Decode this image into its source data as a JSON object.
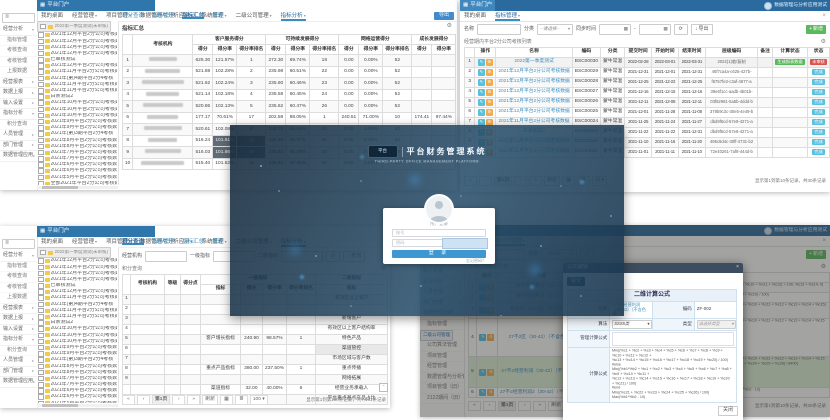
{
  "icons": {
    "gear": "⚙",
    "caret_down": "▾",
    "caret_right": "▸",
    "close": "×",
    "refresh": "⟳",
    "calendar": "▦",
    "grid": "▦",
    "list": "≣",
    "plus": "+",
    "download": "↓",
    "search": "⌕",
    "back_to_top": "⌃",
    "menu": "≣",
    "edit": "✎",
    "tool": "⚙",
    "brand_grid": "▦"
  },
  "colors": {
    "topbar": "#2a6a9f",
    "brand": "#2f76ac",
    "accent": "#3c8dbc",
    "danger": "#d9534f",
    "info": "#5bc0de",
    "success": "#5cb85c",
    "warning": "#f0ad4e"
  },
  "shared": {
    "brand": "平台门户",
    "user_name": "数据管理与分析应用测试",
    "menu_main": [
      {
        "label": "我的桌面",
        "caret": false
      },
      {
        "label": "经营管理",
        "caret": true
      },
      {
        "label": "项目管理",
        "caret": true
      },
      {
        "label": "数据管理与分析应用",
        "caret": true
      },
      {
        "label": "系统管理",
        "caret": true
      },
      {
        "label": "二级公司管理",
        "caret": true
      },
      {
        "label": "指标分析",
        "caret": true,
        "active": true
      }
    ],
    "sidebar_groups": [
      {
        "label": "经营分析",
        "expanded": true,
        "children": [
          "指标管理",
          "考核查询",
          "考核管理",
          "上报数据"
        ]
      },
      {
        "label": "经营报表",
        "expanded": false,
        "children": []
      },
      {
        "label": "数据上报",
        "expanded": false,
        "children": []
      },
      {
        "label": "输入设置",
        "expanded": false,
        "children": []
      },
      {
        "label": "指标分析",
        "expanded": true,
        "children": [
          "积分查询"
        ]
      },
      {
        "label": "人员管理",
        "expanded": false,
        "children": []
      },
      {
        "label": "部门管理",
        "expanded": false,
        "children": []
      },
      {
        "label": "数据管理应用",
        "expanded": false,
        "children": []
      }
    ],
    "tree_items": [
      "2022第一季度测试(未审核)",
      "2021年12月平台2分公司考核数据",
      "2021年12月平台2分公司考核数据",
      "2021年12月平台2分公司考核数据",
      "2021年12月平台2分公司考核数据",
      "已审核测试",
      "2021年12月平台2分公司考核数据",
      "2021年11月平台2分公司考核数据",
      "2021年(第)4期平台2分4考核",
      "2021年11月平台2分公司考核数据",
      "2021年11月平台2分公司考核数据",
      "白条测试2",
      "2021年10月平台2分公司考核数据",
      "2021年10月平台2分公司考核数据",
      "2021年10月平台2分公司考核数据",
      "2021年9月平台2分公司考核数据",
      "2021年9月平台2分公司考核数据",
      "2021年(第)3期平台2分4考核",
      "2021年8月平台2分公司考核数据",
      "2021年8月平台2分公司考核数据",
      "2021年7月平台2分公司考核数据",
      "2021年7月平台2分公司考核数据",
      "2021年6月平台2分公司考核数据",
      "2021年6月平台2分公司考核数据",
      "2021年5月平台2分公司考核数据",
      "全部2021年平台2分公司考核数据"
    ],
    "pager_glyphs": {
      "first": "«",
      "prev": "‹",
      "next": "›",
      "last": "»"
    }
  },
  "panel_tl": {
    "tabs": [
      {
        "label": "积分查询"
      },
      {
        "label": "指标管理"
      },
      {
        "label": "指标汇总",
        "active": true
      },
      {
        "label": "报表"
      }
    ],
    "export_label": "导出",
    "section_title": "指标汇总",
    "table": {
      "org_header": "考核机构",
      "groups": [
        {
          "label": "客户服务得分",
          "cols": 3
        },
        {
          "label": "可持续发展得分",
          "cols": 3
        },
        {
          "label": "网络运营得分",
          "cols": 3
        },
        {
          "label": "成长发展得分",
          "cols": 2
        }
      ],
      "sub_headers": [
        "得分",
        "得分率",
        "得分率排名"
      ],
      "rows": [
        {
          "idx": "1",
          "vals": [
            "625.30",
            "121.57%",
            "1",
            "272.30",
            "69.74%",
            "18",
            "0.00",
            "0.00%",
            "52",
            "",
            ""
          ]
        },
        {
          "idx": "2",
          "vals": [
            "521.88",
            "102.28%",
            "2",
            "235.98",
            "60.51%",
            "22",
            "0.00",
            "0.00%",
            "52",
            "",
            ""
          ]
        },
        {
          "idx": "3",
          "vals": [
            "521.62",
            "102.24%",
            "3",
            "235.60",
            "60.46%",
            "23",
            "0.00",
            "0.00%",
            "52",
            "",
            ""
          ]
        },
        {
          "idx": "4",
          "vals": [
            "521.14",
            "102.18%",
            "4",
            "235.58",
            "60.45%",
            "24",
            "0.00",
            "0.00%",
            "52",
            "",
            ""
          ]
        },
        {
          "idx": "5",
          "vals": [
            "520.86",
            "102.13%",
            "5",
            "235.62",
            "60.47%",
            "26",
            "0.00",
            "0.00%",
            "52",
            "",
            ""
          ]
        },
        {
          "idx": "6",
          "vals": [
            "177.17",
            "70.61%",
            "17",
            "202.58",
            "98.05%",
            "1",
            "240.51",
            "71.00%",
            "10",
            "174.41",
            "97.44%"
          ]
        },
        {
          "idx": "7",
          "vals": [
            "520.61",
            "102.08%",
            "6",
            "235.76",
            "60.45%",
            "20",
            "0.00",
            "0.00%",
            "52",
            "",
            ""
          ]
        },
        {
          "idx": "8",
          "vals": [
            "516.24",
            "101.61%",
            "11",
            "235.46",
            "60.37%",
            "31",
            "0.00",
            "0.00%",
            "52",
            "",
            ""
          ],
          "dark": [
            1,
            2
          ]
        },
        {
          "idx": "9",
          "vals": [
            "516.03",
            "101.86%",
            "10",
            "235.52",
            "60.39%",
            "25",
            "0.00",
            "0.00%",
            "52",
            "",
            ""
          ],
          "dark": [
            1,
            2
          ]
        },
        {
          "idx": "10",
          "vals": [
            "515.40",
            "101.52%",
            "12",
            "235.40",
            "60.35%",
            "27",
            "0.00",
            "0.00%",
            "52",
            "",
            ""
          ]
        }
      ]
    }
  },
  "panel_tr": {
    "menu": [
      {
        "label": "我的桌面",
        "caret": false
      },
      {
        "label": "指标管理",
        "caret": true,
        "active": true
      }
    ],
    "filters": {
      "name_label": "名称",
      "category_label": "分类",
      "category_value": "--请选择--",
      "sync_label": "同步时间",
      "export_label": "导出",
      "add_label": "新增"
    },
    "caption": "经营期内平台2分公司考核列表",
    "calc_button_label": "生成报表数据",
    "table": {
      "headers": [
        "",
        "操作",
        "名称",
        "编码",
        "分类",
        "提交时间",
        "开始时间",
        "结束时间",
        "层级编码",
        "备注",
        "计算状态",
        "状态"
      ]
    },
    "rows": [
      {
        "name": "2022第一季度测试",
        "code": "BSC00030",
        "cat": "蒙牛常温",
        "t1": "2022-02-28",
        "t2": "2022-03-01",
        "t3": "2022-03-31",
        "hash": "2022(1)临/复制",
        "calc": true,
        "status": "未审核",
        "status_type": "danger"
      },
      {
        "name": "2021年12月平台2分公司考核数据",
        "code": "BSC00029",
        "cat": "蒙牛常温",
        "t1": "2021-12-31",
        "t2": "2021-12-01",
        "t3": "2021-12-31",
        "hash": "46f7ca4a-c625-427b-",
        "calc": false,
        "status": "完成",
        "status_type": "info"
      },
      {
        "name": "2021年12月平台2分公司考核数据",
        "code": "BSC00028",
        "cat": "蒙牛常温",
        "t1": "2021-12-25",
        "t2": "2021-12-22",
        "t3": "2021-12-25",
        "hash": "f6757fe3-c3af-4677-a",
        "calc": false,
        "status": "完成",
        "status_type": "info"
      },
      {
        "name": "2021年12月平台2分公司考核数据",
        "code": "BSC00027",
        "cat": "蒙牛常温",
        "t1": "2021-12-16",
        "t2": "2021-12-15",
        "t3": "2021-12-16",
        "hash": "39e6f1cc-aadb-4b01b-",
        "calc": false,
        "status": "完成",
        "status_type": "info"
      },
      {
        "name": "2021年12月平台2分公司考核数据",
        "code": "BSC00026",
        "cat": "蒙牛常温",
        "t1": "2021-12-11",
        "t2": "2021-12-08",
        "t3": "2021-12-11",
        "hash": "03f62981-5a5b-4ddd-b",
        "calc": false,
        "status": "完成",
        "status_type": "info"
      },
      {
        "name": "2021年12月平台2分公司考核数据",
        "code": "BSC00025",
        "cat": "蒙牛常温",
        "t1": "2021-12-01",
        "t2": "2021-11-28",
        "t3": "2021-11-08",
        "hash": "379b9c3c-30e5-4e49-b",
        "calc": false,
        "status": "完成",
        "status_type": "info"
      },
      {
        "name": "2021年11月平台2分公司考核数据",
        "code": "BSC00024",
        "cat": "蒙牛常温",
        "t1": "2021-11-25",
        "t2": "2021-11-24",
        "t3": "2021-11-27",
        "hash": "dbd9f5cd-57e9-4271-a",
        "calc": false,
        "status": "完成",
        "status_type": "info"
      },
      {
        "name": "白条测试2",
        "code": "BSC00023",
        "cat": "蒙牛常温",
        "t1": "2021-11-22",
        "t2": "2021-11-22",
        "t3": "2021-12-31",
        "hash": "dbd9f5cd-57e6-4271-a",
        "calc": false,
        "status": "完成",
        "status_type": "info"
      },
      {
        "name": "2021年11月平台2分公司考核数据",
        "code": "BSC00022",
        "cat": "蒙牛常温",
        "t1": "2021-11-10",
        "t2": "2021-11-16",
        "t3": "2021-11-20",
        "hash": "495c9d4c-30ff-4731-b2",
        "calc": false,
        "status": "完成",
        "status_type": "info"
      },
      {
        "name": "2021年11月平台2分公司考核数据",
        "code": "BSC00021",
        "cat": "蒙牛常温",
        "t1": "2021-11-01",
        "t2": "2021-11-11",
        "t3": "2021-11-10",
        "hash": "72e40261-7af8-444d-b",
        "calc": false,
        "status": "完成",
        "status_type": "info"
      }
    ],
    "pager": {
      "page": "第1页",
      "refresh": "刷新",
      "size": "10",
      "summary": "显示第1到第10条记录，共30条记录"
    }
  },
  "panel_bl": {
    "tabs": [
      {
        "label": "积分查询",
        "active": true
      },
      {
        "label": "指标管理"
      },
      {
        "label": "指标汇总"
      },
      {
        "label": "报表"
      }
    ],
    "filters": {
      "org_label": "经营机构",
      "l1_label": "一级指标",
      "l2_label": "二级指标",
      "search_label": "查询"
    },
    "caption": "积分查询",
    "table": {
      "org_header": "考核机构",
      "grade_header": "等级",
      "point_header": "得分点",
      "g1_label": "一级指标",
      "g2_label": "二级指标",
      "g1_subs": [
        "指标",
        "得分",
        "得分率",
        "得分率排名"
      ],
      "g2_subs": [
        "指标"
      ],
      "rows": [
        {
          "idx": "1",
          "l1": "",
          "score": "",
          "rate": "",
          "rank": "",
          "l2": "有效区以上客户"
        },
        {
          "idx": "2",
          "l1": "",
          "score": "",
          "rate": "",
          "rank": "",
          "l2": ""
        },
        {
          "idx": "3",
          "l1": "",
          "score": "",
          "rate": "",
          "rank": "",
          "l2": "新增客户"
        },
        {
          "idx": "4",
          "l1": "",
          "score": "",
          "rate": "",
          "rank": "",
          "l2": "有效区以上客户结构率"
        },
        {
          "idx": "5",
          "l1": "客户增长指标",
          "score": "240.90",
          "rate": "98.57%",
          "rank": "1",
          "l2": "特色产品"
        },
        {
          "idx": "6",
          "l1": "",
          "score": "",
          "rate": "",
          "rank": "",
          "l2": "渠道管控",
          "hl": true
        },
        {
          "idx": "7",
          "l1": "",
          "score": "",
          "rate": "",
          "rank": "",
          "l2": "市场区域与客户数"
        },
        {
          "idx": "8",
          "l1": "重点产品指标",
          "score": "380.00",
          "rate": "237.50%",
          "rank": "1",
          "l2": "重点传播"
        },
        {
          "idx": "9",
          "l1": "",
          "score": "",
          "rate": "",
          "rank": "",
          "l2": "网络拓展"
        },
        {
          "idx": "",
          "l1": "渠道指标",
          "score": "32.00",
          "rate": "40.00%",
          "rank": "6",
          "l2": "经营业务承载人"
        },
        {
          "idx": "",
          "l1": "",
          "score": "",
          "rate": "",
          "rank": "",
          "l2": "平台重点基点产品占比"
        }
      ]
    },
    "pager": {
      "page": "第1页",
      "refresh": "刷新",
      "size": "100",
      "summary": "显示第1到第100条记录，共7,401条记录"
    }
  },
  "panel_br": {
    "menu": [
      {
        "label": "我的桌面",
        "caret": false
      },
      {
        "label": "指标管理",
        "caret": true
      },
      {
        "label": "二级公司管理",
        "caret": true,
        "active": true
      }
    ],
    "sidebar_groups": [
      {
        "label": "经营报表",
        "expanded": false,
        "children": []
      },
      {
        "label": "数据上报",
        "expanded": false,
        "children": []
      },
      {
        "label": "输入设置",
        "expanded": false,
        "children": []
      },
      {
        "label": "统计分析",
        "expanded": false,
        "children": []
      },
      {
        "label": "人员管理",
        "expanded": false,
        "children": []
      },
      {
        "label": "部门管理",
        "expanded": false,
        "children": []
      },
      {
        "label": "数据管理应用",
        "expanded": true,
        "selected_child": "二级公司管理",
        "children": [
          "指标管理",
          "二级公司管理",
          "公司算法管理",
          "项目管理",
          "经营管理",
          "数据管理与分析管理",
          "项目管理（旧）",
          "2122期间（旧）"
        ]
      }
    ],
    "filters": {
      "name_label": "名称",
      "category_label": "分类",
      "category_value": "--请选择--",
      "export_label": "导出",
      "add_label": "新增"
    },
    "caption": "二级公司算法列表",
    "table": {
      "headers": [
        "",
        "操作",
        "名称",
        "编码",
        "算法",
        "计算公式"
      ]
    },
    "rows": [
      {
        "name": "蒙牛常温算法（30-42）",
        "code": "ZF-001",
        "algo": "SSS5类",
        "formula": "IF((%c1 + %c2 + %c3 + %c4 + %c5 + %c6 + %c7 + %c8 + %c9 + %c10 + %c11 + %c12) > 100, %c13 + %c14, 0)"
      },
      {
        "name": "蒙牛低温算法（30-42）",
        "code": "ZF-001b",
        "algo": "SSS5类",
        "formula": "Min((%c1 + %c2 + %c3 + %c4 + %c5 + %c6 + %c7 + %c8 + %c9 + %c10) / 100)"
      },
      {
        "name": "蒙牛22（30-42）（不含色量）",
        "code": "ZF-001c",
        "algo": "SSS5类",
        "formula": "Min((%c1 + %c2 + %c3 + %c4 + %c5 + %c6 + %c7 + %c8 + %c9 + %c10 + %c11 + %c12 + %c13 + %c14 + %c15) / 100)"
      },
      {
        "name": "27不2区（30-42）（不含色量）",
        "code": "ZF-002a",
        "algo": "SSS5类",
        "formula": "Min((%c1 + %c2 + %c3 + %c4 + %c5 + %c6 + %c7 + %c8 + %c9 + %c10 + %c11 + %c12 + %c13 + %c14 + %c15 + %c16 + %c17 + %c18 + %c19 + %c20) / 100)\n#else\nMax(%b1*%b2 - 10)\n#end"
      },
      {
        "name": "27不2经营利润（30-42）（不含色量）",
        "code": "ZF-002",
        "algo": "SSS5类",
        "selected": true,
        "formula": "Min((%c1 + %c2 + %c3 + %c4 + %c5 + %c6 + %c7 + %c8 + %c9 + %c10 + %c11 + %c12 + %c13 + %c14 + %c15 + %c16 + %c17 + %c18 + %c19 + %c20 + %c21 + %c22 + %c23 + %c24 + %c25 + %c26) / 8400)\n#end\nMin((%c21 + %c22 + %c23 + %c24 + %c25 + %c26) / 100)"
      },
      {
        "name": "27不2经营利润2（30-42）（不含色量）",
        "code": "ZF-003",
        "algo": "SSS5类",
        "formula": "Max((%c21 + %c22 + %c23 + %c24 + %c25 + %c26) / 100, %b1*%b2 - 10)"
      }
    ],
    "pager": {
      "page": "第1页",
      "refresh": "刷新",
      "size": "10",
      "summary": "显示第1到第10条记录，共30条记录"
    },
    "modal": {
      "title": "公式编辑",
      "submit_label": "提交",
      "form_title": "二维计算公式",
      "name_label": "名称",
      "name_value": "27不2经营利润（30-42）（不含色量）",
      "code_label": "编码",
      "code_value": "ZF-002",
      "algo_label": "算法",
      "algo_value": "SSS5类",
      "type_label": "类型",
      "type_value": "请选择类型",
      "manage_label": "管理计算公式",
      "formula_label": "计算公式",
      "formula_text": "Min((%c1 + %c2 + %c3 + %c4 + %c5 + %c6 + %c7 + %c8 + %c9 + %c10 + %c11 + %c12 +\n%c13 + %c14 + %c15 + %c16 + %c17 + %c18 + %c19 + %c20) / 100)\n#else\nMin((%b1*%b2 + %c1 + %c2 + %c3 + %c4 + %c5 + %c6 + %c7 + %c8 + %c9 + %c10 + %c11 +\n%c12 + %c13 + %c14 + %c15 + %c16 + %c17 + %c18 + %c19 + %c20 + %c21) / 100)\n#end\nMin((%c21 + %c22 + %c23 + %c24 + %c25 + %c26) / 100)\nMax(%b1*%b2 - 10)",
      "close_label": "关闭"
    }
  },
  "overlay": {
    "logo_text": "平台",
    "title_cn": "平台财务管理系统",
    "title_en": "THIRD-PARTY OFFICE MANAGEMENT PLATFORM",
    "login": {
      "heading": "用户登录",
      "username_placeholder": "账号",
      "password_placeholder": "密码",
      "submit_label": "登 录",
      "forgot_label": "忘记密码？"
    }
  }
}
